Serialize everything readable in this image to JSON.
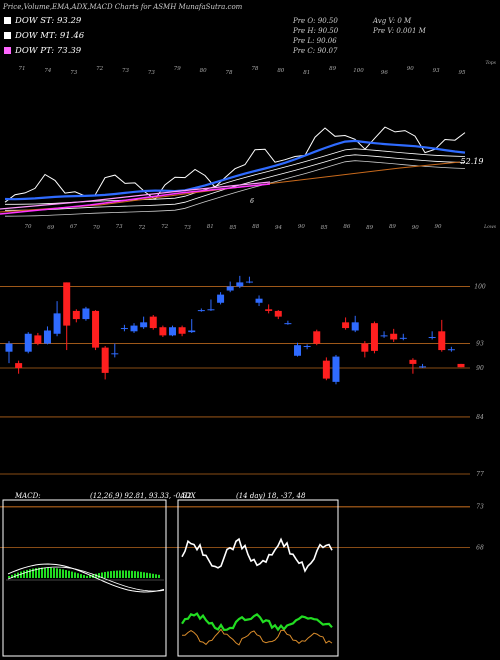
{
  "header": {
    "title": "Price,Volume,EMA,ADX,MACD Charts for ASMH MunafaSutra.com"
  },
  "legend": [
    {
      "label": "DOW ST: 93.29",
      "color": "#ffffff"
    },
    {
      "label": "DOW MT: 91.46",
      "color": "#ffffff"
    },
    {
      "label": "DOW PT: 73.39",
      "color": "#ff66ff"
    }
  ],
  "ohlc": {
    "open": "Pre O: 90.50",
    "high": "Pre H: 90.50",
    "low": "Pre L: 90.06",
    "close": "Pre C: 90.07",
    "avg_vol": "Avg V: 0 M",
    "vol": "Pre V: 0.001 M"
  },
  "top_panel": {
    "top_label": "Tops",
    "bottom_label": "Lows",
    "value_label": "52.19",
    "inner_label": "6",
    "top_marks": [
      "71",
      "74",
      "73",
      "72",
      "73",
      "73",
      "79",
      "80",
      "78",
      "78",
      "80",
      "81",
      "89",
      "100",
      "96",
      "90",
      "93",
      "95"
    ],
    "bottom_marks": [
      "70",
      "69",
      "67",
      "70",
      "73",
      "72",
      "72",
      "73",
      "81",
      "85",
      "88",
      "94",
      "90",
      "85",
      "86",
      "89",
      "89",
      "90",
      "90"
    ]
  },
  "price_axis": [
    "100",
    "93",
    "90",
    "84",
    "77",
    "73",
    "68"
  ],
  "macd": {
    "label": "MACD:",
    "values": "(12,26,9) 92.81, 93.33, -0.52"
  },
  "adx": {
    "label": "ADX",
    "values": "(14 day) 18, -37, 48"
  },
  "chart_data": {
    "type": "candlestick",
    "title": "Price,Volume,EMA,ADX,MACD Charts for ASMH MunafaSutra.com",
    "xlabel": "",
    "ylabel": "",
    "ylim": [
      64,
      103
    ],
    "y_ticks": [
      100,
      93,
      90,
      84,
      77,
      73,
      68
    ],
    "grid": true,
    "candles": [
      {
        "o": 92.0,
        "c": 93.0,
        "h": 93.3,
        "l": 90.6
      },
      {
        "o": 90.6,
        "c": 90.0,
        "h": 90.9,
        "l": 89.3
      },
      {
        "o": 92.0,
        "c": 94.2,
        "h": 94.4,
        "l": 91.8
      },
      {
        "o": 94.0,
        "c": 93.0,
        "h": 94.3,
        "l": 92.8
      },
      {
        "o": 93.0,
        "c": 94.6,
        "h": 95.1,
        "l": 92.9
      },
      {
        "o": 94.2,
        "c": 96.7,
        "h": 98.2,
        "l": 93.9
      },
      {
        "o": 100.5,
        "c": 95.2,
        "h": 100.5,
        "l": 92.2
      },
      {
        "o": 97.0,
        "c": 96.0,
        "h": 97.2,
        "l": 95.6
      },
      {
        "o": 96.0,
        "c": 97.3,
        "h": 97.5,
        "l": 95.8
      },
      {
        "o": 97.0,
        "c": 92.5,
        "h": 97.1,
        "l": 92.2
      },
      {
        "o": 92.5,
        "c": 89.4,
        "h": 92.7,
        "l": 88.6
      },
      {
        "o": 91.7,
        "c": 91.8,
        "h": 93.0,
        "l": 91.3
      },
      {
        "o": 94.9,
        "c": 94.9,
        "h": 95.3,
        "l": 94.5
      },
      {
        "o": 94.5,
        "c": 95.2,
        "h": 95.5,
        "l": 94.3
      },
      {
        "o": 95.0,
        "c": 95.6,
        "h": 96.3,
        "l": 94.8
      },
      {
        "o": 96.3,
        "c": 94.9,
        "h": 96.5,
        "l": 94.7
      },
      {
        "o": 95.0,
        "c": 94.0,
        "h": 95.2,
        "l": 93.8
      },
      {
        "o": 94.0,
        "c": 95.0,
        "h": 95.2,
        "l": 93.9
      },
      {
        "o": 95.0,
        "c": 94.2,
        "h": 95.2,
        "l": 93.9
      },
      {
        "o": 94.4,
        "c": 94.6,
        "h": 96.0,
        "l": 94.3
      },
      {
        "o": 97.0,
        "c": 97.1,
        "h": 97.3,
        "l": 96.9
      },
      {
        "o": 97.2,
        "c": 97.2,
        "h": 98.4,
        "l": 97.0
      },
      {
        "o": 98.0,
        "c": 99.0,
        "h": 99.3,
        "l": 97.8
      },
      {
        "o": 99.5,
        "c": 100.0,
        "h": 100.6,
        "l": 99.3
      },
      {
        "o": 100.0,
        "c": 100.5,
        "h": 101.3,
        "l": 99.8
      },
      {
        "o": 100.6,
        "c": 100.6,
        "h": 101.2,
        "l": 100.4
      },
      {
        "o": 98.0,
        "c": 98.5,
        "h": 98.9,
        "l": 97.6
      },
      {
        "o": 97.2,
        "c": 97.0,
        "h": 97.8,
        "l": 96.7
      },
      {
        "o": 97.0,
        "c": 96.3,
        "h": 97.1,
        "l": 96.0
      },
      {
        "o": 95.5,
        "c": 95.5,
        "h": 95.8,
        "l": 95.3
      },
      {
        "o": 91.5,
        "c": 92.8,
        "h": 93.1,
        "l": 91.4
      },
      {
        "o": 92.6,
        "c": 92.7,
        "h": 92.9,
        "l": 92.3
      },
      {
        "o": 94.5,
        "c": 93.0,
        "h": 94.7,
        "l": 92.8
      },
      {
        "o": 90.9,
        "c": 88.7,
        "h": 91.3,
        "l": 88.5
      },
      {
        "o": 88.3,
        "c": 91.4,
        "h": 91.6,
        "l": 88.0
      },
      {
        "o": 95.6,
        "c": 94.9,
        "h": 96.2,
        "l": 94.7
      },
      {
        "o": 94.6,
        "c": 95.6,
        "h": 96.4,
        "l": 94.4
      },
      {
        "o": 93.0,
        "c": 92.0,
        "h": 93.3,
        "l": 91.3
      },
      {
        "o": 95.5,
        "c": 92.1,
        "h": 95.7,
        "l": 91.8
      },
      {
        "o": 94.0,
        "c": 94.0,
        "h": 94.5,
        "l": 93.7
      },
      {
        "o": 94.2,
        "c": 93.5,
        "h": 94.8,
        "l": 93.2
      },
      {
        "o": 93.7,
        "c": 93.7,
        "h": 94.2,
        "l": 93.4
      },
      {
        "o": 91.0,
        "c": 90.5,
        "h": 91.2,
        "l": 89.3
      },
      {
        "o": 90.2,
        "c": 90.2,
        "h": 90.5,
        "l": 90.0
      },
      {
        "o": 93.8,
        "c": 93.8,
        "h": 94.5,
        "l": 93.5
      },
      {
        "o": 94.5,
        "c": 92.2,
        "h": 95.9,
        "l": 92.0
      },
      {
        "o": 92.3,
        "c": 92.3,
        "h": 92.6,
        "l": 92.0
      },
      {
        "o": 90.5,
        "c": 90.1,
        "h": 90.5,
        "l": 90.1
      }
    ]
  }
}
